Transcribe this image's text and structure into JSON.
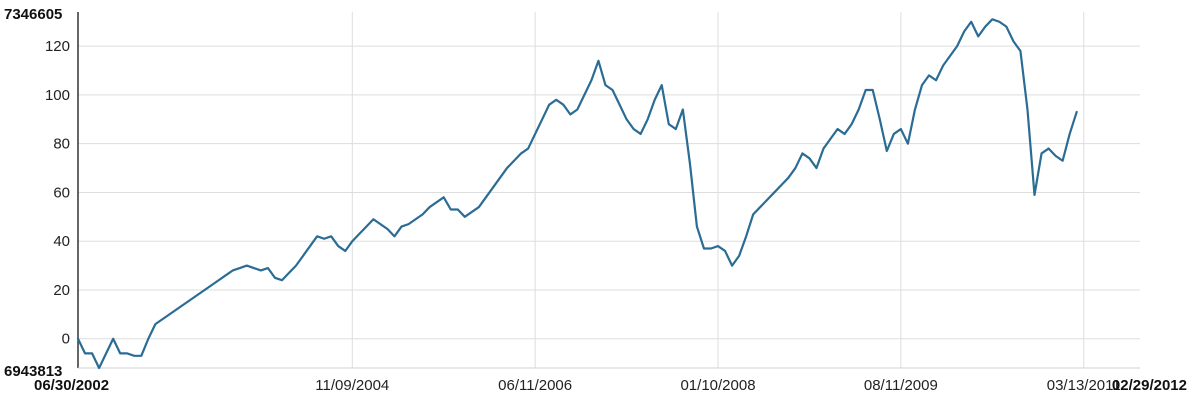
{
  "chart_data": {
    "type": "line",
    "title": "",
    "xlabel": "",
    "ylabel": "",
    "ylim": [
      -12,
      134
    ],
    "xlim_index": [
      0,
      151
    ],
    "grid": true,
    "legend": "none",
    "color": "#2b6c95",
    "y_ticks": [
      0,
      20,
      40,
      60,
      80,
      100,
      120
    ],
    "y_tick_labels": [
      "0",
      "20",
      "40",
      "60",
      "80",
      "100",
      "120"
    ],
    "y_top_label": "7346605",
    "y_bottom_label": "6943813",
    "x_tick_labels": [
      {
        "text": "06/30/2002",
        "index": 0,
        "bold": true
      },
      {
        "text": "11/09/2004",
        "index": 39,
        "bold": false
      },
      {
        "text": "06/11/2006",
        "index": 65,
        "bold": false
      },
      {
        "text": "01/10/2008",
        "index": 91,
        "bold": false
      },
      {
        "text": "08/11/2009",
        "index": 117,
        "bold": false
      },
      {
        "text": "03/13/2011",
        "index": 143,
        "bold": false
      },
      {
        "text": "02/29/2012",
        "index": 151,
        "bold": true
      }
    ],
    "series": [
      {
        "values": [
          0,
          -6,
          -6,
          -12,
          -6,
          0,
          -6,
          -6,
          -7,
          -7,
          0,
          6,
          8,
          10,
          12,
          14,
          16,
          18,
          20,
          22,
          24,
          26,
          28,
          29,
          30,
          29,
          28,
          29,
          25,
          24,
          27,
          30,
          34,
          38,
          42,
          41,
          42,
          38,
          36,
          40,
          43,
          46,
          49,
          47,
          45,
          42,
          46,
          47,
          49,
          51,
          54,
          56,
          58,
          53,
          53,
          50,
          52,
          54,
          58,
          62,
          66,
          70,
          73,
          76,
          78,
          84,
          90,
          96,
          98,
          96,
          92,
          94,
          100,
          106,
          114,
          104,
          102,
          96,
          90,
          86,
          84,
          90,
          98,
          104,
          88,
          86,
          94,
          72,
          46,
          37,
          37,
          38,
          36,
          30,
          34,
          42,
          51,
          54,
          57,
          60,
          63,
          66,
          70,
          76,
          74,
          70,
          78,
          82,
          86,
          84,
          88,
          94,
          102,
          102,
          90,
          77,
          84,
          86,
          80,
          94,
          104,
          108,
          106,
          112,
          116,
          120,
          126,
          130,
          124,
          128,
          131,
          130,
          128,
          122,
          118,
          94,
          59,
          76,
          78,
          75,
          73,
          84,
          93
        ]
      }
    ]
  }
}
